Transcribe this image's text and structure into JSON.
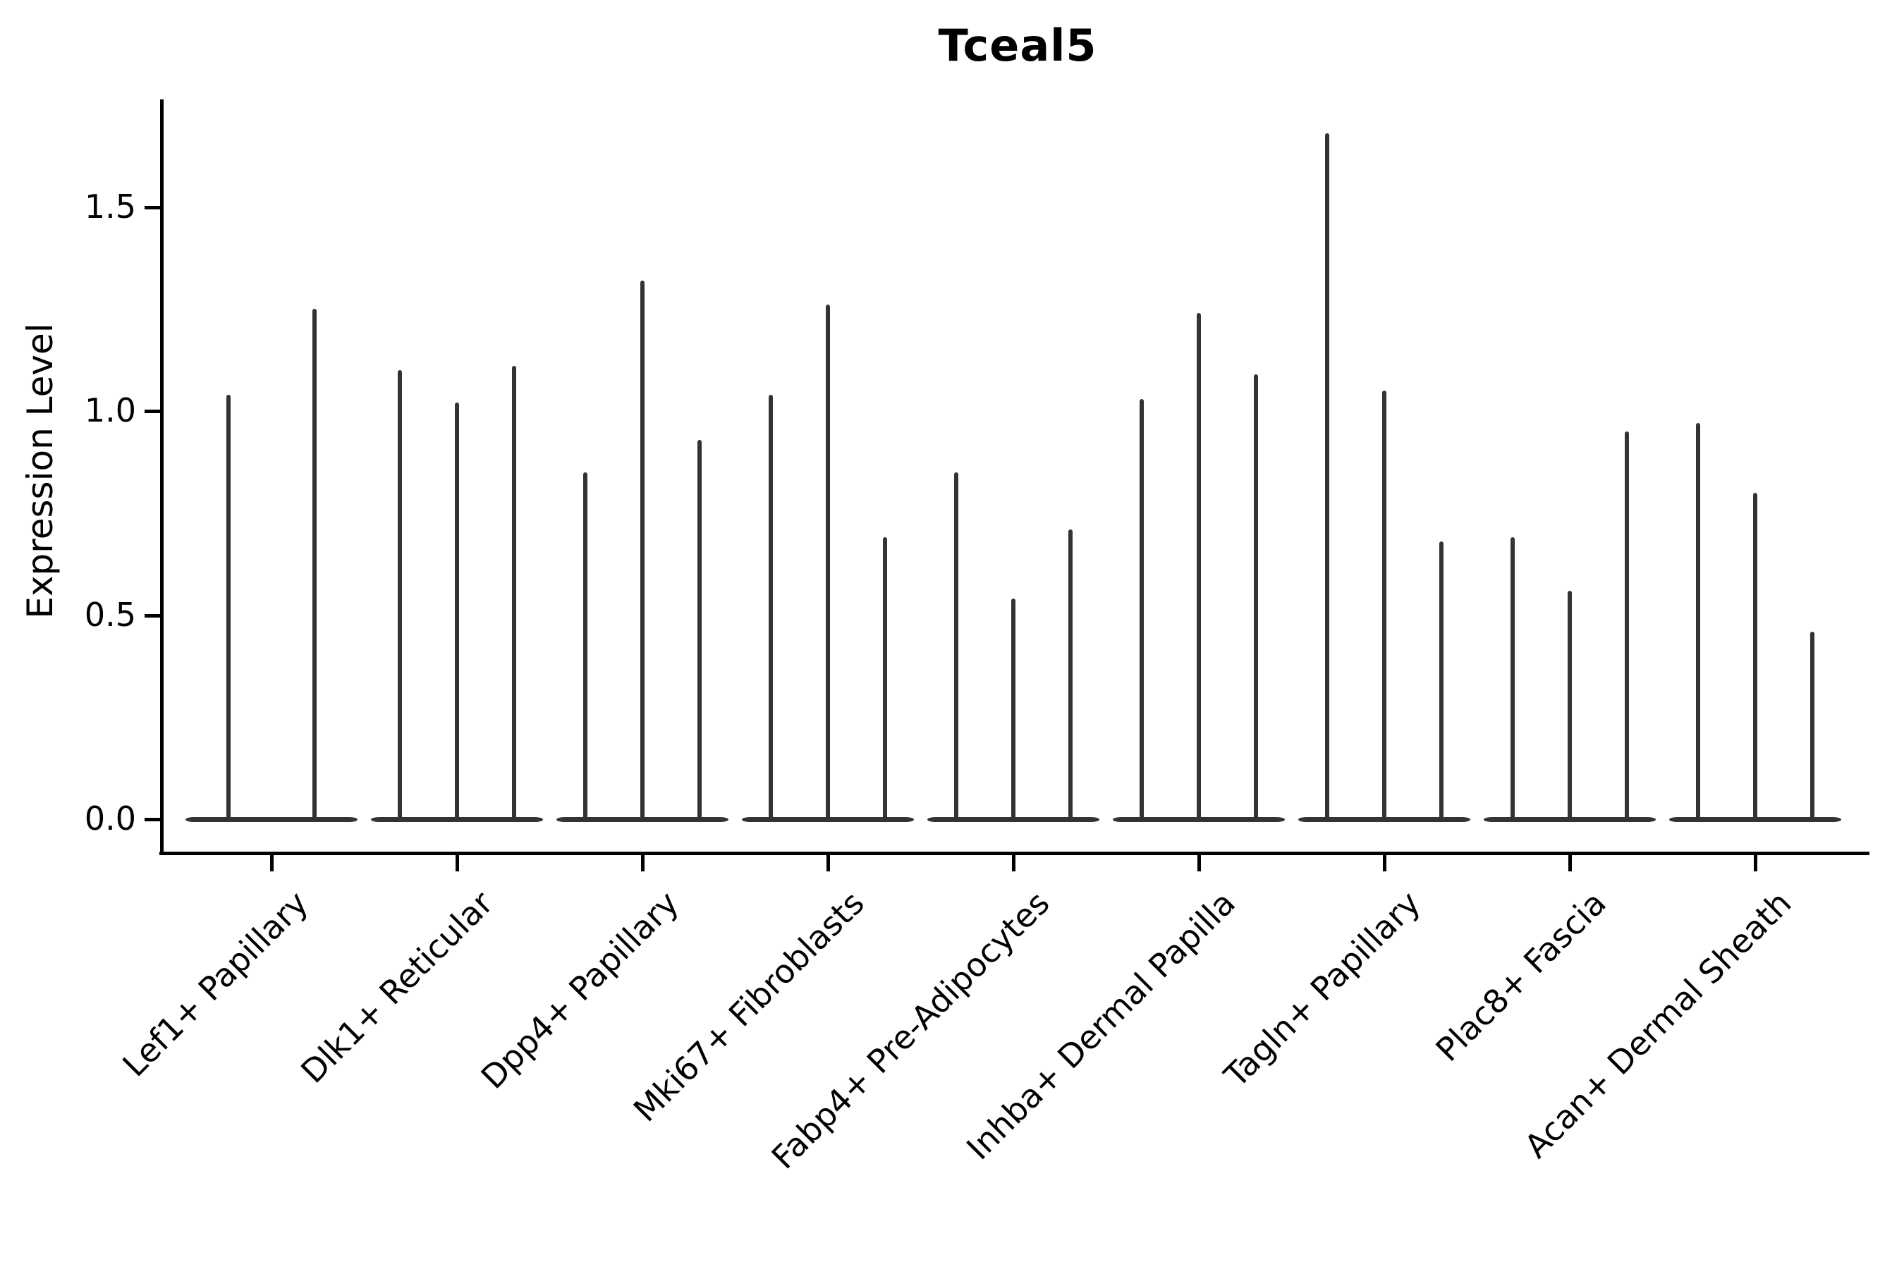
{
  "chart_data": {
    "type": "violin",
    "title": "Tceal5",
    "ylabel": "Expression Level",
    "xlabel": "",
    "yticks": [
      "0.0",
      "0.5",
      "1.0",
      "1.5"
    ],
    "ytick_values": [
      0.0,
      0.5,
      1.0,
      1.5
    ],
    "ylim": [
      -0.08,
      1.77
    ],
    "grid": false,
    "legend": null,
    "categories": [
      "Lef1+ Papillary",
      "Dlk1+ Reticular",
      "Dpp4+ Papillary",
      "Mki67+ Fibroblasts",
      "Fabp4+ Pre-Adipocytes",
      "Inhba+ Dermal Papilla",
      "Tagln+ Papillary",
      "Plac8+ Fascia",
      "Acan+ Dermal Sheath"
    ],
    "groups": [
      {
        "category": "Lef1+ Papillary",
        "spike_values": [
          1.04,
          1.25
        ]
      },
      {
        "category": "Dlk1+ Reticular",
        "spike_values": [
          1.1,
          1.02,
          1.11
        ]
      },
      {
        "category": "Dpp4+ Papillary",
        "spike_values": [
          0.85,
          1.32,
          0.93
        ]
      },
      {
        "category": "Mki67+ Fibroblasts",
        "spike_values": [
          1.04,
          1.26,
          0.69
        ]
      },
      {
        "category": "Fabp4+ Pre-Adipocytes",
        "spike_values": [
          0.85,
          0.54,
          0.71
        ]
      },
      {
        "category": "Inhba+ Dermal Papilla",
        "spike_values": [
          1.03,
          1.24,
          1.09
        ]
      },
      {
        "category": "Tagln+ Papillary",
        "spike_values": [
          1.68,
          1.05,
          0.68
        ]
      },
      {
        "category": "Plac8+ Fascia",
        "spike_values": [
          0.69,
          0.56,
          0.95
        ]
      },
      {
        "category": "Acan+ Dermal Sheath",
        "spike_values": [
          0.97,
          0.8,
          0.46
        ]
      }
    ],
    "colors": {
      "violin": "#333333",
      "axis": "#000000",
      "text": "#000000",
      "background": "#ffffff"
    }
  }
}
